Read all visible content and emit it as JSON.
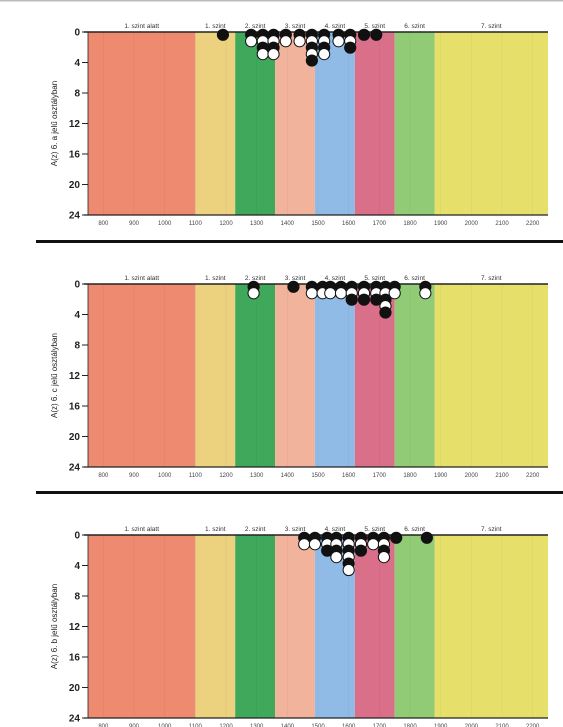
{
  "chart_data": [
    {
      "type": "scatter",
      "ylabel": "A(z) 6. a jelű osztályban",
      "xlim": [
        750,
        2250
      ],
      "ylim": [
        24,
        0
      ],
      "yticks": [
        0,
        4,
        8,
        12,
        16,
        20,
        24
      ],
      "xtick_labels": [
        "800",
        "900",
        "1000",
        "1100",
        "1200",
        "1300",
        "1400",
        "1500",
        "1600",
        "1700",
        "1800",
        "1900",
        "2000",
        "2100",
        "2200"
      ],
      "bands": [
        {
          "label": "1. szint alatt",
          "from": 750,
          "to": 1100,
          "color": "#ee8a6f"
        },
        {
          "label": "1. szint",
          "from": 1100,
          "to": 1230,
          "color": "#ecd27e"
        },
        {
          "label": "2. szint",
          "from": 1230,
          "to": 1360,
          "color": "#3fa85a"
        },
        {
          "label": "3. szint",
          "from": 1360,
          "to": 1490,
          "color": "#f2b39c"
        },
        {
          "label": "4. szint",
          "from": 1490,
          "to": 1620,
          "color": "#8fbbe6"
        },
        {
          "label": "5. szint",
          "from": 1620,
          "to": 1750,
          "color": "#da6f8a"
        },
        {
          "label": "6. szint",
          "from": 1750,
          "to": 1880,
          "color": "#92cb75"
        },
        {
          "label": "7. szint",
          "from": 1880,
          "to": 2250,
          "color": "#e6e06a"
        }
      ],
      "points": [
        {
          "x": 1190,
          "n": 1
        },
        {
          "x": 1282,
          "n": 2
        },
        {
          "x": 1320,
          "n": 4
        },
        {
          "x": 1355,
          "n": 4
        },
        {
          "x": 1395,
          "n": 2
        },
        {
          "x": 1440,
          "n": 2
        },
        {
          "x": 1480,
          "n": 5
        },
        {
          "x": 1520,
          "n": 4
        },
        {
          "x": 1567,
          "n": 2
        },
        {
          "x": 1605,
          "n": 3
        },
        {
          "x": 1650,
          "n": 1
        },
        {
          "x": 1690,
          "n": 1
        }
      ]
    },
    {
      "type": "scatter",
      "ylabel": "A(z) 6. c jelű osztályban",
      "xlim": [
        750,
        2250
      ],
      "ylim": [
        24,
        0
      ],
      "yticks": [
        0,
        4,
        8,
        12,
        16,
        20,
        24
      ],
      "xtick_labels": [
        "800",
        "900",
        "1000",
        "1100",
        "1200",
        "1300",
        "1400",
        "1500",
        "1600",
        "1700",
        "1800",
        "1900",
        "2000",
        "2100",
        "2200"
      ],
      "bands": [
        {
          "label": "1. szint alatt",
          "from": 750,
          "to": 1100,
          "color": "#ee8a6f"
        },
        {
          "label": "1. szint",
          "from": 1100,
          "to": 1230,
          "color": "#ecd27e"
        },
        {
          "label": "2. szint",
          "from": 1230,
          "to": 1360,
          "color": "#3fa85a"
        },
        {
          "label": "3. szint",
          "from": 1360,
          "to": 1490,
          "color": "#f2b39c"
        },
        {
          "label": "4. szint",
          "from": 1490,
          "to": 1620,
          "color": "#8fbbe6"
        },
        {
          "label": "5. szint",
          "from": 1620,
          "to": 1750,
          "color": "#da6f8a"
        },
        {
          "label": "6. szint",
          "from": 1750,
          "to": 1880,
          "color": "#92cb75"
        },
        {
          "label": "7. szint",
          "from": 1880,
          "to": 2250,
          "color": "#e6e06a"
        }
      ],
      "points": [
        {
          "x": 1290,
          "n": 2
        },
        {
          "x": 1420,
          "n": 1
        },
        {
          "x": 1480,
          "n": 2
        },
        {
          "x": 1515,
          "n": 2
        },
        {
          "x": 1540,
          "n": 2
        },
        {
          "x": 1575,
          "n": 2
        },
        {
          "x": 1610,
          "n": 3
        },
        {
          "x": 1650,
          "n": 3
        },
        {
          "x": 1690,
          "n": 3
        },
        {
          "x": 1720,
          "n": 5
        },
        {
          "x": 1750,
          "n": 2
        },
        {
          "x": 1850,
          "n": 2
        }
      ]
    },
    {
      "type": "scatter",
      "ylabel": "A(z) 6. b jelű osztályban",
      "xlim": [
        750,
        2250
      ],
      "ylim": [
        24,
        0
      ],
      "yticks": [
        0,
        4,
        8,
        12,
        16,
        20,
        24
      ],
      "xtick_labels": [
        "800",
        "900",
        "1000",
        "1100",
        "1200",
        "1300",
        "1400",
        "1500",
        "1600",
        "1700",
        "1800",
        "1900",
        "2000",
        "2100",
        "2200"
      ],
      "bands": [
        {
          "label": "1. szint alatt",
          "from": 750,
          "to": 1100,
          "color": "#ee8a6f"
        },
        {
          "label": "1. szint",
          "from": 1100,
          "to": 1230,
          "color": "#ecd27e"
        },
        {
          "label": "2. szint",
          "from": 1230,
          "to": 1360,
          "color": "#3fa85a"
        },
        {
          "label": "3. szint",
          "from": 1360,
          "to": 1490,
          "color": "#f2b39c"
        },
        {
          "label": "4. szint",
          "from": 1490,
          "to": 1620,
          "color": "#8fbbe6"
        },
        {
          "label": "5. szint",
          "from": 1620,
          "to": 1750,
          "color": "#da6f8a"
        },
        {
          "label": "6. szint",
          "from": 1750,
          "to": 1880,
          "color": "#92cb75"
        },
        {
          "label": "7. szint",
          "from": 1880,
          "to": 2250,
          "color": "#e6e06a"
        }
      ],
      "points": [
        {
          "x": 1455,
          "n": 2
        },
        {
          "x": 1490,
          "n": 2
        },
        {
          "x": 1530,
          "n": 3
        },
        {
          "x": 1560,
          "n": 4
        },
        {
          "x": 1600,
          "n": 6
        },
        {
          "x": 1640,
          "n": 3
        },
        {
          "x": 1680,
          "n": 2
        },
        {
          "x": 1715,
          "n": 4
        },
        {
          "x": 1755,
          "n": 1
        },
        {
          "x": 1855,
          "n": 1
        }
      ]
    }
  ]
}
